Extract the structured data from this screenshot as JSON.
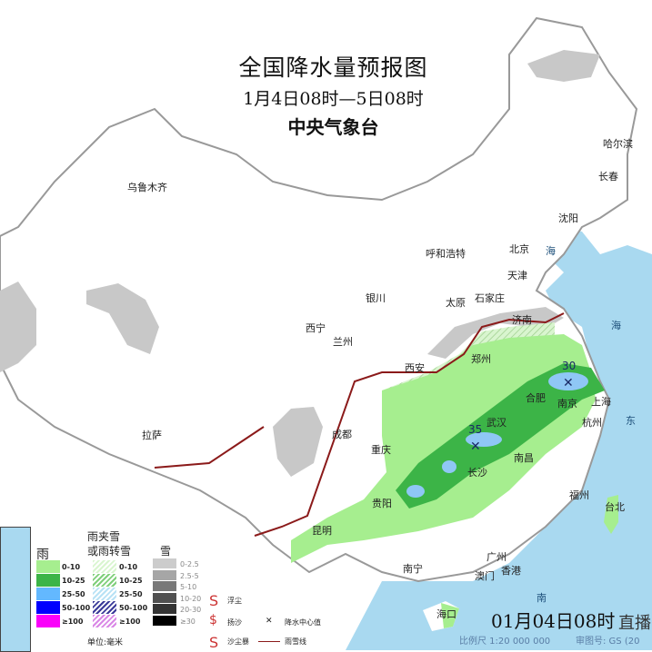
{
  "header": {
    "title": "全国降水量预报图",
    "period": "1月4日08时—5日08时",
    "issuer": "中央气象台"
  },
  "cities": [
    {
      "name": "乌鲁木齐"
    },
    {
      "name": "哈尔滨"
    },
    {
      "name": "长春"
    },
    {
      "name": "沈阳"
    },
    {
      "name": "呼和浩特"
    },
    {
      "name": "北京"
    },
    {
      "name": "天津"
    },
    {
      "name": "银川"
    },
    {
      "name": "太原"
    },
    {
      "name": "石家庄"
    },
    {
      "name": "西宁"
    },
    {
      "name": "兰州"
    },
    {
      "name": "济南"
    },
    {
      "name": "西安"
    },
    {
      "name": "郑州"
    },
    {
      "name": "拉萨"
    },
    {
      "name": "成都"
    },
    {
      "name": "重庆"
    },
    {
      "name": "合肥"
    },
    {
      "name": "南京"
    },
    {
      "name": "上海"
    },
    {
      "name": "武汉"
    },
    {
      "name": "杭州"
    },
    {
      "name": "长沙"
    },
    {
      "name": "南昌"
    },
    {
      "name": "贵阳"
    },
    {
      "name": "昆明"
    },
    {
      "name": "福州"
    },
    {
      "name": "台北"
    },
    {
      "name": "南宁"
    },
    {
      "name": "广州"
    },
    {
      "name": "香港"
    },
    {
      "name": "澳门"
    },
    {
      "name": "海口"
    }
  ],
  "seas": [
    {
      "name": "海"
    },
    {
      "name": "海"
    },
    {
      "name": "东"
    },
    {
      "name": "南"
    }
  ],
  "rain_centers": [
    {
      "value": "30"
    },
    {
      "value": "35"
    }
  ],
  "legend": {
    "rain_title": "雨",
    "mixed_title_1": "雨夹雪",
    "mixed_title_2": "或雨转雪",
    "snow_title": "雪",
    "rain": [
      {
        "label": "0-10",
        "color": "#a6ee8f"
      },
      {
        "label": "10-25",
        "color": "#3cb447"
      },
      {
        "label": "25-50",
        "color": "#63b8ff"
      },
      {
        "label": "50-100",
        "color": "#0000fe"
      },
      {
        "label": "≥100",
        "color": "#fa00fa"
      }
    ],
    "mixed": [
      {
        "label": "0-10"
      },
      {
        "label": "10-25"
      },
      {
        "label": "25-50"
      },
      {
        "label": "50-100"
      },
      {
        "label": "≥100"
      }
    ],
    "snow": [
      {
        "label": "0-2.5",
        "color": "#cccccc"
      },
      {
        "label": "2.5-5",
        "color": "#a6a6a6"
      },
      {
        "label": "5-10",
        "color": "#787878"
      },
      {
        "label": "10-20",
        "color": "#505050"
      },
      {
        "label": "20-30",
        "color": "#343434"
      },
      {
        "label": "≥30",
        "color": "#000000"
      }
    ],
    "unit": "单位:毫米",
    "symbols": [
      {
        "label": "浮尘",
        "icon": "dust-s-icon"
      },
      {
        "label": "扬沙",
        "icon": "sand-dollar-icon"
      },
      {
        "label": "沙尘暴",
        "icon": "sandstorm-icon"
      },
      {
        "label": "降水中心值",
        "icon": "x-mark-icon"
      },
      {
        "label": "雨雪线",
        "icon": "rain-snow-line-icon"
      }
    ]
  },
  "footer": {
    "scale": "比例尺 1:20 000 000",
    "review_no": "审图号: GS (20",
    "stamp": "01月04日08时",
    "watermark": "直播"
  },
  "colors": {
    "sea": "#a9d9f0",
    "rain_light": "#a6ee8f",
    "rain_mid": "#3cb447",
    "rain_heavy": "#63b8ff",
    "snow": "#cccccc",
    "rain_snow_line": "#8b1a1a"
  }
}
